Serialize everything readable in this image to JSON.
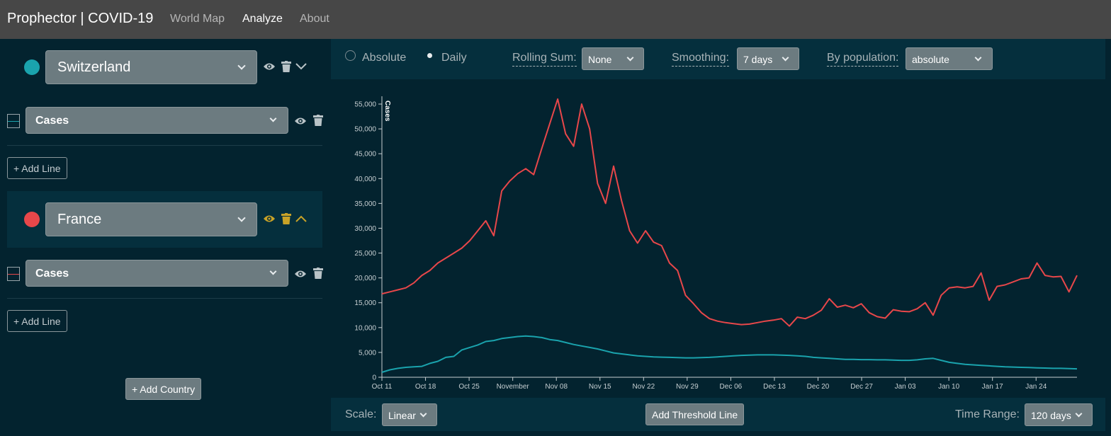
{
  "nav": {
    "brand": "Prophector | COVID-19",
    "links": [
      "World Map",
      "Analyze",
      "About"
    ]
  },
  "sidebar": {
    "countries": [
      {
        "name": "Switzerland",
        "color": "#1aa3ad",
        "metric": "Cases",
        "add_line": "+ Add Line"
      },
      {
        "name": "France",
        "color": "#e8474a",
        "metric": "Cases",
        "add_line": "+ Add Line"
      }
    ],
    "add_country": "+ Add Country"
  },
  "controls": {
    "mode_options": [
      "Absolute",
      "Daily"
    ],
    "mode_selected": "Daily",
    "rolling_sum_label": "Rolling Sum:",
    "rolling_sum_value": "None",
    "smoothing_label": "Smoothing:",
    "smoothing_value": "7 days",
    "by_population_label": "By population:",
    "by_population_value": "absolute"
  },
  "bottom": {
    "scale_label": "Scale:",
    "scale_value": "Linear",
    "threshold_button": "Add Threshold Line",
    "time_range_label": "Time Range:",
    "time_range_value": "120 days"
  },
  "chart_data": {
    "type": "line",
    "ylabel": "Cases",
    "ylim": [
      0,
      56000
    ],
    "yticks": [
      0,
      5000,
      10000,
      15000,
      20000,
      25000,
      30000,
      35000,
      40000,
      45000,
      50000,
      55000
    ],
    "ytick_labels": [
      "0",
      "5,000",
      "10,000",
      "15,000",
      "20,000",
      "25,000",
      "30,000",
      "35,000",
      "40,000",
      "45,000",
      "50,000",
      "55,000"
    ],
    "xtick_labels": [
      "Oct 11",
      "Oct 18",
      "Oct 25",
      "November",
      "Nov 08",
      "Nov 15",
      "Nov 22",
      "Nov 29",
      "Dec 06",
      "Dec 13",
      "Dec 20",
      "Dec 27",
      "Jan 03",
      "Jan 10",
      "Jan 17",
      "Jan 24"
    ],
    "grid": false,
    "series": [
      {
        "color": "#e8474a",
        "values": [
          16800,
          17200,
          17600,
          18000,
          19000,
          20500,
          21500,
          23000,
          24000,
          25000,
          26000,
          27500,
          29500,
          31500,
          28500,
          37500,
          39500,
          41000,
          42000,
          40800,
          46000,
          51000,
          56000,
          49000,
          46500,
          55000,
          50000,
          39000,
          35000,
          42500,
          35500,
          29500,
          27000,
          29500,
          27200,
          26500,
          23000,
          21500,
          16500,
          14800,
          13000,
          11800,
          11300,
          11000,
          10800,
          10600,
          10700,
          11000,
          11300,
          11500,
          11800,
          10300,
          12100,
          11800,
          12500,
          13500,
          15800,
          14100,
          14500,
          14000,
          14800,
          13000,
          12200,
          11900,
          13600,
          13300,
          13200,
          13800,
          15000,
          12500,
          16500,
          18000,
          18200,
          18000,
          18300,
          21000,
          15500,
          18300,
          18600,
          19200,
          19800,
          20000,
          23000,
          20500,
          20200,
          20300,
          17200,
          20500
        ]
      },
      {
        "color": "#1aa3ad",
        "values": [
          1000,
          1500,
          1800,
          2000,
          2100,
          2200,
          2800,
          3200,
          4000,
          4200,
          5500,
          6000,
          6500,
          7200,
          7400,
          7800,
          8000,
          8200,
          8300,
          8200,
          8000,
          7600,
          7400,
          7000,
          6600,
          6300,
          6000,
          5700,
          5300,
          4900,
          4700,
          4500,
          4300,
          4200,
          4100,
          4050,
          4000,
          3950,
          3900,
          3900,
          3950,
          4000,
          4100,
          4200,
          4300,
          4400,
          4450,
          4500,
          4500,
          4500,
          4450,
          4400,
          4300,
          4200,
          4000,
          3900,
          3800,
          3700,
          3600,
          3600,
          3550,
          3550,
          3500,
          3500,
          3450,
          3400,
          3400,
          3500,
          3700,
          3800,
          3400,
          3000,
          2800,
          2600,
          2500,
          2400,
          2300,
          2200,
          2100,
          2050,
          2000,
          1950,
          1900,
          1850,
          1800,
          1800,
          1750,
          1700
        ]
      }
    ]
  }
}
